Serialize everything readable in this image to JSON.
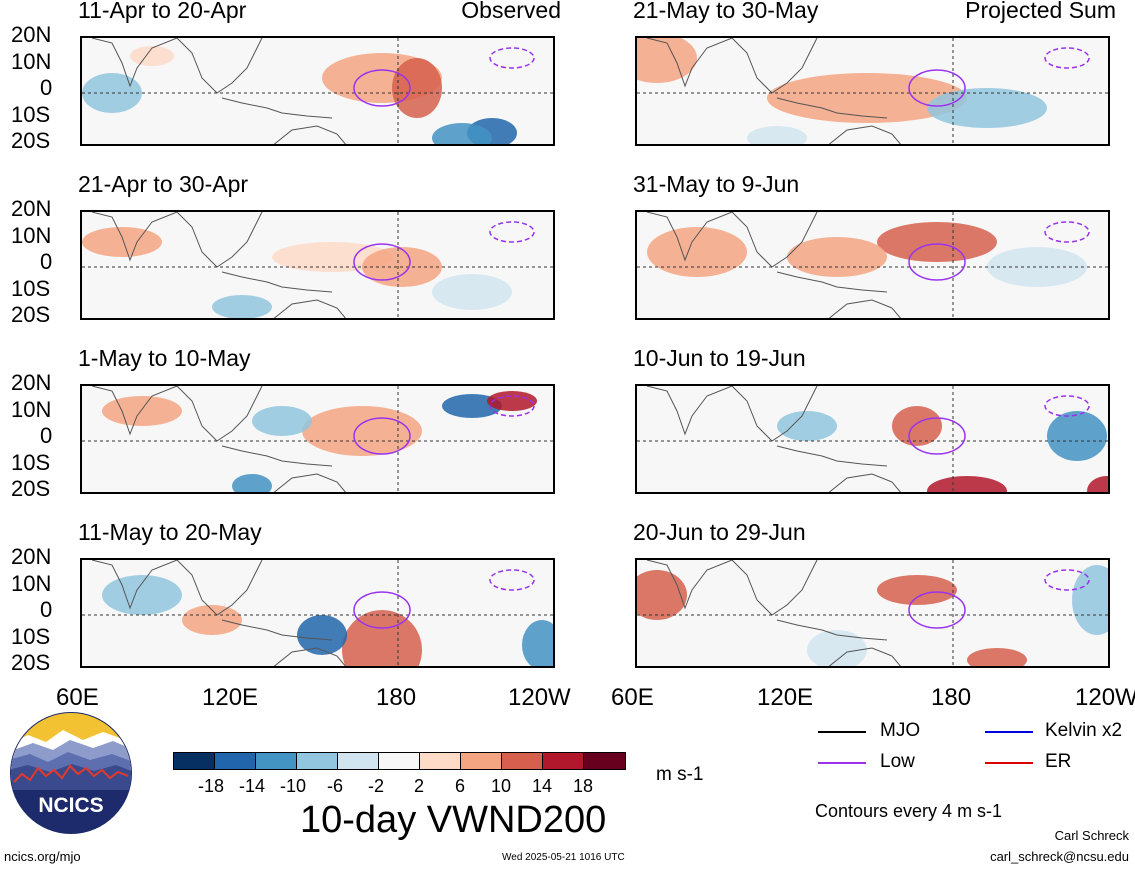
{
  "panels_left": [
    {
      "title": "11-Apr to 20-Apr",
      "corner": "Observed"
    },
    {
      "title": "21-Apr to 30-Apr",
      "corner": ""
    },
    {
      "title": "1-May to 10-May",
      "corner": ""
    },
    {
      "title": "11-May to 20-May",
      "corner": ""
    }
  ],
  "panels_right": [
    {
      "title": "21-May to 30-May",
      "corner": "Projected Sum"
    },
    {
      "title": "31-May to 9-Jun",
      "corner": ""
    },
    {
      "title": "10-Jun to 19-Jun",
      "corner": ""
    },
    {
      "title": "20-Jun to 29-Jun",
      "corner": ""
    }
  ],
  "lat_labels": [
    "20N",
    "10N",
    "0",
    "10S",
    "20S"
  ],
  "lon_labels": [
    "60E",
    "120E",
    "180",
    "120W"
  ],
  "lon_labels_right": [
    "60E",
    "120E",
    "180",
    "120W"
  ],
  "colorbar": {
    "ticks": [
      "-18",
      "-14",
      "-10",
      "-6",
      "-2",
      "2",
      "6",
      "10",
      "14",
      "18"
    ],
    "colors": [
      "#053061",
      "#2166ac",
      "#4393c3",
      "#92c5de",
      "#d1e5f0",
      "#f7f7f7",
      "#fddbc7",
      "#f4a582",
      "#d6604d",
      "#b2182b",
      "#67001f"
    ],
    "units": "m s-1"
  },
  "main_title": "10-day VWND200",
  "legend": {
    "mjo": "MJO",
    "low": "Low",
    "kelvin": "Kelvin x2",
    "er": "ER",
    "colors": {
      "mjo": "#000000",
      "low": "#9933ee",
      "kelvin": "#0000dd",
      "er": "#dd0000"
    }
  },
  "contours_note": "Contours every 4 m s-1",
  "logo_text": "NCICS",
  "footer": {
    "url": "ncics.org/mjo",
    "timestamp": "Wed 2025-05-21 1016 UTC",
    "author": "Carl Schreck",
    "email": "carl_schreck@ncsu.edu"
  }
}
